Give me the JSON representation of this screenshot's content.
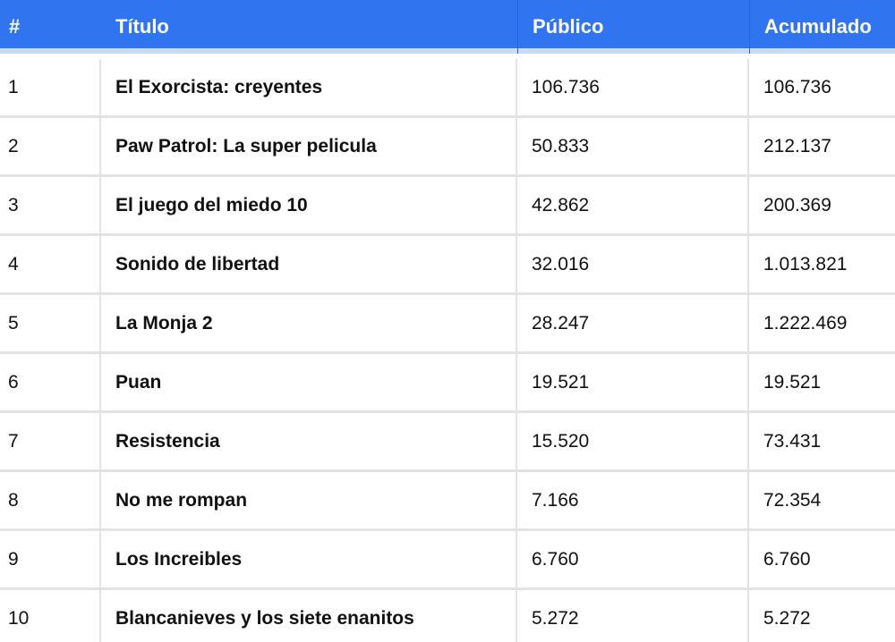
{
  "table": {
    "headers": [
      "#",
      "Título",
      "Público",
      "Acumulado"
    ],
    "rows": [
      {
        "rank": "1",
        "title": "El Exorcista: creyentes",
        "publico": "106.736",
        "acumulado": "106.736"
      },
      {
        "rank": "2",
        "title": "Paw Patrol: La super pelicula",
        "publico": "50.833",
        "acumulado": "212.137"
      },
      {
        "rank": "3",
        "title": "El juego del miedo 10",
        "publico": "42.862",
        "acumulado": "200.369"
      },
      {
        "rank": "4",
        "title": "Sonido de libertad",
        "publico": "32.016",
        "acumulado": "1.013.821"
      },
      {
        "rank": "5",
        "title": "La Monja 2",
        "publico": "28.247",
        "acumulado": "1.222.469"
      },
      {
        "rank": "6",
        "title": "Puan",
        "publico": "19.521",
        "acumulado": "19.521"
      },
      {
        "rank": "7",
        "title": "Resistencia",
        "publico": "15.520",
        "acumulado": "73.431"
      },
      {
        "rank": "8",
        "title": "No me rompan",
        "publico": "7.166",
        "acumulado": "72.354"
      },
      {
        "rank": "9",
        "title": "Los Increibles",
        "publico": "6.760",
        "acumulado": "6.760"
      },
      {
        "rank": "10",
        "title": "Blancanieves y los siete enanitos",
        "publico": "5.272",
        "acumulado": "5.272"
      }
    ]
  },
  "colors": {
    "header_background": "#3074f0",
    "header_text": "#ffffff",
    "row_divider": "#e3e3e3"
  }
}
